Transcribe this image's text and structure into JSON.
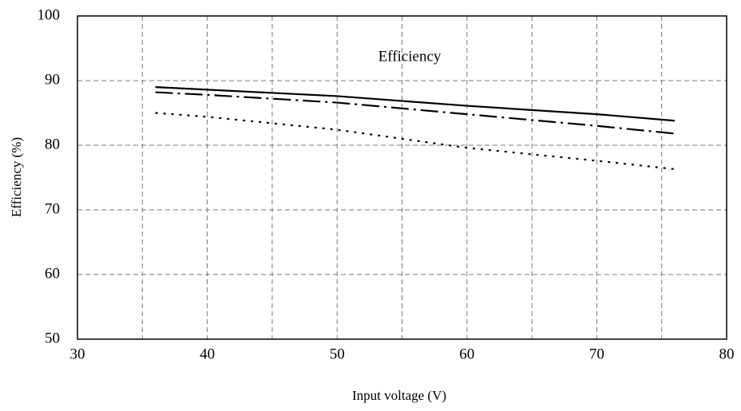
{
  "chart_data": {
    "type": "line",
    "title": "Efficiency",
    "xlabel": "Input voltage (V)",
    "ylabel": "Efficiency (%)",
    "x": [
      36,
      40,
      50,
      60,
      70,
      76
    ],
    "series": [
      {
        "color": "#000000",
        "style": "solid",
        "values": [
          89.0,
          88.6,
          87.6,
          86.1,
          84.8,
          83.8
        ]
      },
      {
        "color": "#000000",
        "style": "dashdot",
        "values": [
          88.2,
          87.8,
          86.6,
          84.8,
          83.0,
          81.8
        ]
      },
      {
        "color": "#000000",
        "style": "dotted",
        "values": [
          85.0,
          84.4,
          82.4,
          79.6,
          77.6,
          76.3
        ]
      }
    ],
    "xlim": [
      30,
      80
    ],
    "xticks": [
      30,
      40,
      50,
      60,
      70,
      80
    ],
    "x_minor_grid": [
      35,
      45,
      55,
      65,
      75
    ],
    "ylim": [
      50,
      100
    ],
    "yticks": [
      50,
      60,
      70,
      80,
      90,
      100
    ],
    "grid": true
  }
}
